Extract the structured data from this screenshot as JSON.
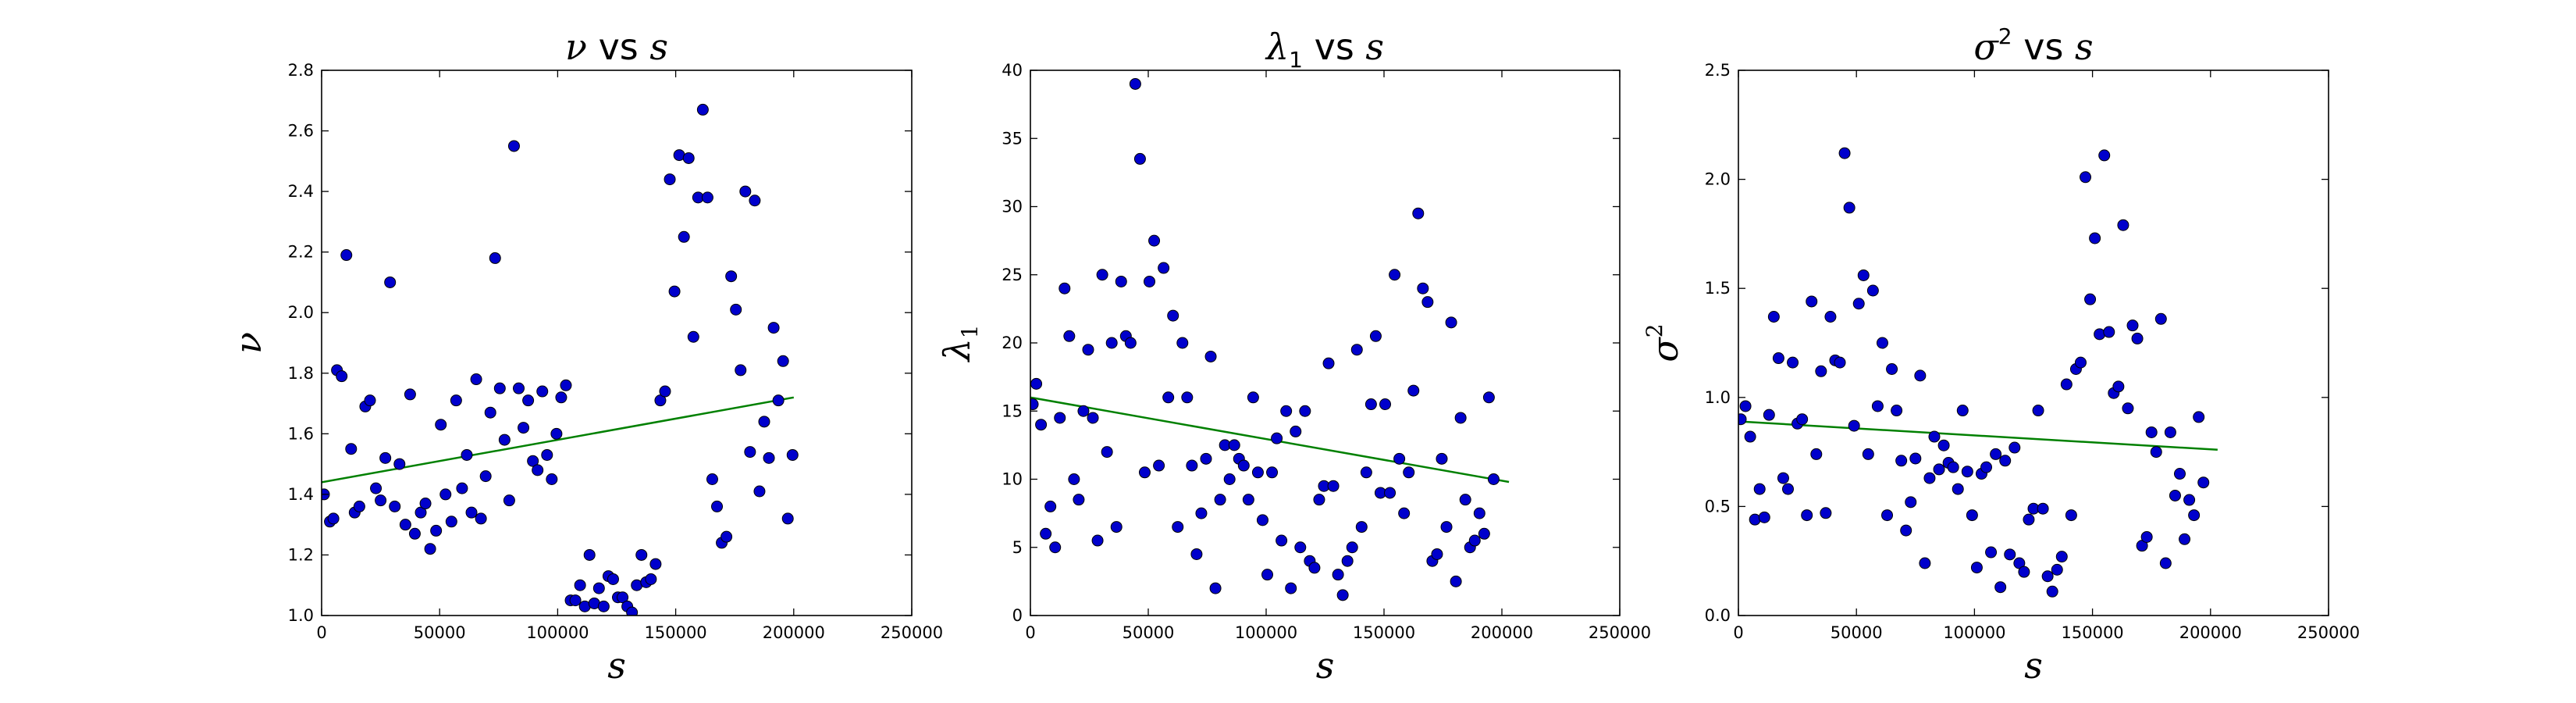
{
  "chart_data": [
    {
      "type": "scatter",
      "title": "ν vs s",
      "title_parts": {
        "sym": "ν",
        "sup": "",
        "sub": "",
        "vs": "vs",
        "var": "s"
      },
      "xlabel": "s",
      "ylabel": "ν",
      "ylabel_parts": {
        "sym": "ν",
        "sub": "",
        "sup": ""
      },
      "xlim": [
        0,
        250000
      ],
      "ylim": [
        1.0,
        2.8
      ],
      "xticks": [
        0,
        50000,
        100000,
        150000,
        200000,
        250000
      ],
      "xtick_labels": [
        "0",
        "50000",
        "100000",
        "150000",
        "200000",
        "250000"
      ],
      "yticks": [
        1.0,
        1.2,
        1.4,
        1.6,
        1.8,
        2.0,
        2.2,
        2.4,
        2.6,
        2.8
      ],
      "ytick_labels": [
        "1.0",
        "1.2",
        "1.4",
        "1.6",
        "1.8",
        "2.0",
        "2.2",
        "2.4",
        "2.6",
        "2.8"
      ],
      "grid": false,
      "marker_color": "#0000cc",
      "fit_color": "#008000",
      "points": [
        [
          1000,
          1.4
        ],
        [
          3500,
          1.31
        ],
        [
          5000,
          1.32
        ],
        [
          6500,
          1.81
        ],
        [
          8500,
          1.79
        ],
        [
          10500,
          2.19
        ],
        [
          12500,
          1.55
        ],
        [
          14000,
          1.34
        ],
        [
          16000,
          1.36
        ],
        [
          18500,
          1.69
        ],
        [
          20500,
          1.71
        ],
        [
          23000,
          1.42
        ],
        [
          25000,
          1.38
        ],
        [
          27000,
          1.52
        ],
        [
          29000,
          2.1
        ],
        [
          31000,
          1.36
        ],
        [
          33000,
          1.5
        ],
        [
          35500,
          1.3
        ],
        [
          37500,
          1.73
        ],
        [
          39500,
          1.27
        ],
        [
          42000,
          1.34
        ],
        [
          44000,
          1.37
        ],
        [
          46000,
          1.22
        ],
        [
          48500,
          1.28
        ],
        [
          50500,
          1.63
        ],
        [
          52500,
          1.4
        ],
        [
          55000,
          1.31
        ],
        [
          57000,
          1.71
        ],
        [
          59500,
          1.42
        ],
        [
          61500,
          1.53
        ],
        [
          63500,
          1.34
        ],
        [
          65500,
          1.78
        ],
        [
          67500,
          1.32
        ],
        [
          69500,
          1.46
        ],
        [
          71500,
          1.67
        ],
        [
          73500,
          2.18
        ],
        [
          75500,
          1.75
        ],
        [
          77500,
          1.58
        ],
        [
          79500,
          1.38
        ],
        [
          81500,
          2.55
        ],
        [
          83500,
          1.75
        ],
        [
          85500,
          1.62
        ],
        [
          87500,
          1.71
        ],
        [
          89500,
          1.51
        ],
        [
          91500,
          1.48
        ],
        [
          93500,
          1.74
        ],
        [
          95500,
          1.53
        ],
        [
          97500,
          1.45
        ],
        [
          99500,
          1.6
        ],
        [
          101500,
          1.72
        ],
        [
          103500,
          1.76
        ],
        [
          105500,
          1.05
        ],
        [
          107500,
          1.05
        ],
        [
          109500,
          1.1
        ],
        [
          111500,
          1.03
        ],
        [
          113500,
          1.2
        ],
        [
          115500,
          1.04
        ],
        [
          117500,
          1.09
        ],
        [
          119500,
          1.03
        ],
        [
          121500,
          1.13
        ],
        [
          123500,
          1.12
        ],
        [
          125500,
          1.06
        ],
        [
          127500,
          1.06
        ],
        [
          129500,
          1.03
        ],
        [
          131500,
          1.01
        ],
        [
          133500,
          1.1
        ],
        [
          135500,
          1.2
        ],
        [
          137500,
          1.11
        ],
        [
          139500,
          1.12
        ],
        [
          141500,
          1.17
        ],
        [
          143500,
          1.71
        ],
        [
          145500,
          1.74
        ],
        [
          147500,
          2.44
        ],
        [
          149500,
          2.07
        ],
        [
          151500,
          2.52
        ],
        [
          153500,
          2.25
        ],
        [
          155500,
          2.51
        ],
        [
          157500,
          1.92
        ],
        [
          159500,
          2.38
        ],
        [
          161500,
          2.67
        ],
        [
          163500,
          2.38
        ],
        [
          165500,
          1.45
        ],
        [
          167500,
          1.36
        ],
        [
          169500,
          1.24
        ],
        [
          171500,
          1.26
        ],
        [
          173500,
          2.12
        ],
        [
          175500,
          2.01
        ],
        [
          177500,
          1.81
        ],
        [
          179500,
          2.4
        ],
        [
          181500,
          1.54
        ],
        [
          183500,
          2.37
        ],
        [
          185500,
          1.41
        ],
        [
          187500,
          1.64
        ],
        [
          189500,
          1.52
        ],
        [
          191500,
          1.95
        ],
        [
          193500,
          1.71
        ],
        [
          195500,
          1.84
        ],
        [
          197500,
          1.32
        ],
        [
          199500,
          1.53
        ]
      ],
      "fit": {
        "x": [
          0,
          200000
        ],
        "y": [
          1.44,
          1.72
        ]
      }
    },
    {
      "type": "scatter",
      "title": "λ1 vs s",
      "title_parts": {
        "sym": "λ",
        "sup": "",
        "sub": "1",
        "vs": "vs",
        "var": "s"
      },
      "xlabel": "s",
      "ylabel": "λ1",
      "ylabel_parts": {
        "sym": "λ",
        "sub": "1",
        "sup": ""
      },
      "xlim": [
        0,
        250000
      ],
      "ylim": [
        0,
        40
      ],
      "xticks": [
        0,
        50000,
        100000,
        150000,
        200000,
        250000
      ],
      "xtick_labels": [
        "0",
        "50000",
        "100000",
        "150000",
        "200000",
        "250000"
      ],
      "yticks": [
        0,
        5,
        10,
        15,
        20,
        25,
        30,
        35,
        40
      ],
      "ytick_labels": [
        "0",
        "5",
        "10",
        "15",
        "20",
        "25",
        "30",
        "35",
        "40"
      ],
      "grid": false,
      "marker_color": "#0000cc",
      "fit_color": "#008000",
      "points": [
        [
          1000,
          15.5
        ],
        [
          2500,
          17.0
        ],
        [
          4500,
          14.0
        ],
        [
          6500,
          6.0
        ],
        [
          8500,
          8.0
        ],
        [
          10500,
          5.0
        ],
        [
          12500,
          14.5
        ],
        [
          14500,
          24.0
        ],
        [
          16500,
          20.5
        ],
        [
          18500,
          10.0
        ],
        [
          20500,
          8.5
        ],
        [
          22500,
          15.0
        ],
        [
          24500,
          19.5
        ],
        [
          26500,
          14.5
        ],
        [
          28500,
          5.5
        ],
        [
          30500,
          25.0
        ],
        [
          32500,
          12.0
        ],
        [
          34500,
          20.0
        ],
        [
          36500,
          6.5
        ],
        [
          38500,
          24.5
        ],
        [
          40500,
          20.5
        ],
        [
          42500,
          20.0
        ],
        [
          44500,
          39.0
        ],
        [
          46500,
          33.5
        ],
        [
          48500,
          10.5
        ],
        [
          50500,
          24.5
        ],
        [
          52500,
          27.5
        ],
        [
          54500,
          11.0
        ],
        [
          56500,
          25.5
        ],
        [
          58500,
          16.0
        ],
        [
          60500,
          22.0
        ],
        [
          62500,
          6.5
        ],
        [
          64500,
          20.0
        ],
        [
          66500,
          16.0
        ],
        [
          68500,
          11.0
        ],
        [
          70500,
          4.5
        ],
        [
          72500,
          7.5
        ],
        [
          74500,
          11.5
        ],
        [
          76500,
          19.0
        ],
        [
          78500,
          2.0
        ],
        [
          80500,
          8.5
        ],
        [
          82500,
          12.5
        ],
        [
          84500,
          10.0
        ],
        [
          86500,
          12.5
        ],
        [
          88500,
          11.5
        ],
        [
          90500,
          11.0
        ],
        [
          92500,
          8.5
        ],
        [
          94500,
          16.0
        ],
        [
          96500,
          10.5
        ],
        [
          98500,
          7.0
        ],
        [
          100500,
          3.0
        ],
        [
          102500,
          10.5
        ],
        [
          104500,
          13.0
        ],
        [
          106500,
          5.5
        ],
        [
          108500,
          15.0
        ],
        [
          110500,
          2.0
        ],
        [
          112500,
          13.5
        ],
        [
          114500,
          5.0
        ],
        [
          116500,
          15.0
        ],
        [
          118500,
          4.0
        ],
        [
          120500,
          3.5
        ],
        [
          122500,
          8.5
        ],
        [
          124500,
          9.5
        ],
        [
          126500,
          18.5
        ],
        [
          128500,
          9.5
        ],
        [
          130500,
          3.0
        ],
        [
          132500,
          1.5
        ],
        [
          134500,
          4.0
        ],
        [
          136500,
          5.0
        ],
        [
          138500,
          19.5
        ],
        [
          140500,
          6.5
        ],
        [
          142500,
          10.5
        ],
        [
          144500,
          15.5
        ],
        [
          146500,
          20.5
        ],
        [
          148500,
          9.0
        ],
        [
          150500,
          15.5
        ],
        [
          152500,
          9.0
        ],
        [
          154500,
          25.0
        ],
        [
          156500,
          11.5
        ],
        [
          158500,
          7.5
        ],
        [
          160500,
          10.5
        ],
        [
          162500,
          16.5
        ],
        [
          164500,
          29.5
        ],
        [
          166500,
          24.0
        ],
        [
          168500,
          23.0
        ],
        [
          170500,
          4.0
        ],
        [
          172500,
          4.5
        ],
        [
          174500,
          11.5
        ],
        [
          176500,
          6.5
        ],
        [
          178500,
          21.5
        ],
        [
          180500,
          2.5
        ],
        [
          182500,
          14.5
        ],
        [
          184500,
          8.5
        ],
        [
          186500,
          5.0
        ],
        [
          188500,
          5.5
        ],
        [
          190500,
          7.5
        ],
        [
          192500,
          6.0
        ],
        [
          194500,
          16.0
        ],
        [
          196500,
          10.0
        ]
      ],
      "fit": {
        "x": [
          0,
          203000
        ],
        "y": [
          16.0,
          9.8
        ]
      }
    },
    {
      "type": "scatter",
      "title": "σ2 vs s",
      "title_parts": {
        "sym": "σ",
        "sup": "2",
        "sub": "",
        "vs": "vs",
        "var": "s"
      },
      "xlabel": "s",
      "ylabel": "σ2",
      "ylabel_parts": {
        "sym": "σ",
        "sub": "",
        "sup": "2"
      },
      "xlim": [
        0,
        250000
      ],
      "ylim": [
        0.0,
        2.5
      ],
      "xticks": [
        0,
        50000,
        100000,
        150000,
        200000,
        250000
      ],
      "xtick_labels": [
        "0",
        "50000",
        "100000",
        "150000",
        "200000",
        "250000"
      ],
      "yticks": [
        0.0,
        0.5,
        1.0,
        1.5,
        2.0,
        2.5
      ],
      "ytick_labels": [
        "0.0",
        "0.5",
        "1.0",
        "1.5",
        "2.0",
        "2.5"
      ],
      "grid": false,
      "marker_color": "#0000cc",
      "fit_color": "#008000",
      "points": [
        [
          1000,
          0.9
        ],
        [
          3000,
          0.96
        ],
        [
          5000,
          0.82
        ],
        [
          7000,
          0.44
        ],
        [
          9000,
          0.58
        ],
        [
          11000,
          0.45
        ],
        [
          13000,
          0.92
        ],
        [
          15000,
          1.37
        ],
        [
          17000,
          1.18
        ],
        [
          19000,
          0.63
        ],
        [
          21000,
          0.58
        ],
        [
          23000,
          1.16
        ],
        [
          25000,
          0.88
        ],
        [
          27000,
          0.9
        ],
        [
          29000,
          0.46
        ],
        [
          31000,
          1.44
        ],
        [
          33000,
          0.74
        ],
        [
          35000,
          1.12
        ],
        [
          37000,
          0.47
        ],
        [
          39000,
          1.37
        ],
        [
          41000,
          1.17
        ],
        [
          43000,
          1.16
        ],
        [
          45000,
          2.12
        ],
        [
          47000,
          1.87
        ],
        [
          49000,
          0.87
        ],
        [
          51000,
          1.43
        ],
        [
          53000,
          1.56
        ],
        [
          55000,
          0.74
        ],
        [
          57000,
          1.49
        ],
        [
          59000,
          0.96
        ],
        [
          61000,
          1.25
        ],
        [
          63000,
          0.46
        ],
        [
          65000,
          1.13
        ],
        [
          67000,
          0.94
        ],
        [
          69000,
          0.71
        ],
        [
          71000,
          0.39
        ],
        [
          73000,
          0.52
        ],
        [
          75000,
          0.72
        ],
        [
          77000,
          1.1
        ],
        [
          79000,
          0.24
        ],
        [
          81000,
          0.63
        ],
        [
          83000,
          0.82
        ],
        [
          85000,
          0.67
        ],
        [
          87000,
          0.78
        ],
        [
          89000,
          0.7
        ],
        [
          91000,
          0.68
        ],
        [
          93000,
          0.58
        ],
        [
          95000,
          0.94
        ],
        [
          97000,
          0.66
        ],
        [
          99000,
          0.46
        ],
        [
          101000,
          0.22
        ],
        [
          103000,
          0.65
        ],
        [
          105000,
          0.68
        ],
        [
          107000,
          0.29
        ],
        [
          109000,
          0.74
        ],
        [
          111000,
          0.13
        ],
        [
          113000,
          0.71
        ],
        [
          115000,
          0.28
        ],
        [
          117000,
          0.77
        ],
        [
          119000,
          0.24
        ],
        [
          121000,
          0.2
        ],
        [
          123000,
          0.44
        ],
        [
          125000,
          0.49
        ],
        [
          127000,
          0.94
        ],
        [
          129000,
          0.49
        ],
        [
          131000,
          0.18
        ],
        [
          133000,
          0.11
        ],
        [
          135000,
          0.21
        ],
        [
          137000,
          0.27
        ],
        [
          139000,
          1.06
        ],
        [
          141000,
          0.46
        ],
        [
          143000,
          1.13
        ],
        [
          145000,
          1.16
        ],
        [
          147000,
          2.01
        ],
        [
          149000,
          1.45
        ],
        [
          151000,
          1.73
        ],
        [
          153000,
          1.29
        ],
        [
          155000,
          2.11
        ],
        [
          157000,
          1.3
        ],
        [
          159000,
          1.02
        ],
        [
          161000,
          1.05
        ],
        [
          163000,
          1.79
        ],
        [
          165000,
          0.95
        ],
        [
          167000,
          1.33
        ],
        [
          169000,
          1.27
        ],
        [
          171000,
          0.32
        ],
        [
          173000,
          0.36
        ],
        [
          175000,
          0.84
        ],
        [
          177000,
          0.75
        ],
        [
          179000,
          1.36
        ],
        [
          181000,
          0.24
        ],
        [
          183000,
          0.84
        ],
        [
          185000,
          0.55
        ],
        [
          187000,
          0.65
        ],
        [
          189000,
          0.35
        ],
        [
          191000,
          0.53
        ],
        [
          193000,
          0.46
        ],
        [
          195000,
          0.91
        ],
        [
          197000,
          0.61
        ]
      ],
      "fit": {
        "x": [
          0,
          203000
        ],
        "y": [
          0.89,
          0.76
        ]
      }
    }
  ]
}
